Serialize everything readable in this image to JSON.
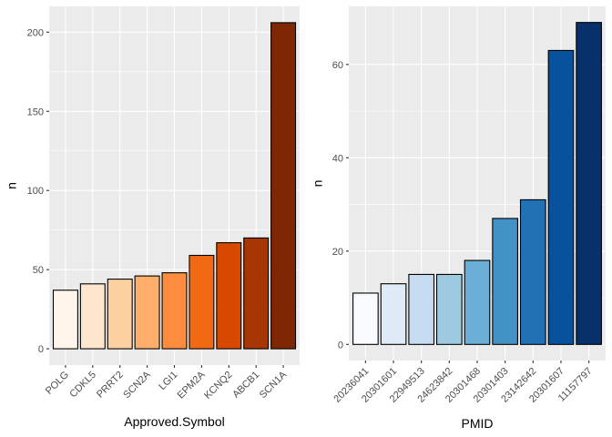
{
  "chart_data": [
    {
      "type": "bar",
      "xlabel": "Approved.Symbol",
      "ylabel": "n",
      "categories": [
        "POLG",
        "CDKL5",
        "PRRT2",
        "SCN2A",
        "LGI1",
        "EPM2A",
        "KCNQ2",
        "ABCB1",
        "SCN1A"
      ],
      "values": [
        37,
        41,
        44,
        46,
        48,
        59,
        67,
        70,
        206
      ],
      "ylim": [
        -10.3,
        216.3
      ],
      "yticks": [
        0,
        50,
        100,
        150,
        200
      ],
      "fill_colors": [
        "#fff5eb",
        "#fee6ce",
        "#fdd0a2",
        "#fdae6b",
        "#fd8d3c",
        "#f16913",
        "#d94801",
        "#a63603",
        "#7f2704"
      ],
      "grid": true
    },
    {
      "type": "bar",
      "xlabel": "PMID",
      "ylabel": "n",
      "categories": [
        "20236041",
        "20301601",
        "22949513",
        "24623842",
        "20301468",
        "20301403",
        "23142642",
        "20301607",
        "11157797"
      ],
      "values": [
        11,
        13,
        15,
        15,
        18,
        27,
        31,
        63,
        69
      ],
      "ylim": [
        -3.45,
        72.45
      ],
      "yticks": [
        0,
        20,
        40,
        60
      ],
      "fill_colors": [
        "#f7fbff",
        "#deebf7",
        "#c6dbef",
        "#9ecae1",
        "#6baed6",
        "#4292c6",
        "#2171b5",
        "#08519c",
        "#08306b"
      ],
      "grid": true
    }
  ]
}
